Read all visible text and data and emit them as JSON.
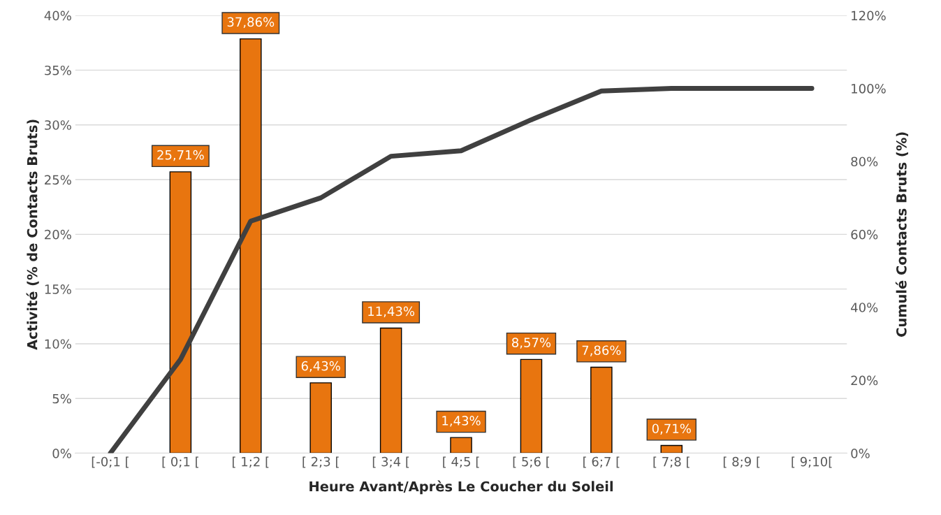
{
  "chart_data": {
    "type": "bar",
    "xlabel": "Heure Avant/Après Le Coucher du Soleil",
    "ylabel": "Activité (% de Contacts Bruts)",
    "y2label": "Cumulé Contacts Bruts (%)",
    "categories": [
      "[-0;1 [",
      "[ 0;1 [",
      "[ 1;2 [",
      "[ 2;3 [",
      "[ 3;4 [",
      "[ 4;5 [",
      "[ 5;6 [",
      "[ 6;7 [",
      "[ 7;8 [",
      "[ 8;9 [",
      "[ 9;10["
    ],
    "series": [
      {
        "color": "#e8750f",
        "values": [
          null,
          25.71,
          37.86,
          6.43,
          11.43,
          1.43,
          8.57,
          7.86,
          0.71,
          null,
          null
        ],
        "value_labels": [
          null,
          "25,71%",
          "37,86%",
          "6,43%",
          "11,43%",
          "1,43%",
          "8,57%",
          "7,86%",
          "0,71%",
          null,
          null
        ]
      },
      {
        "type": "line",
        "axis": "y2",
        "color": "#404040",
        "values": [
          0,
          25.7,
          63.6,
          70,
          81.4,
          82.9,
          91.4,
          99.3,
          100,
          100,
          100
        ]
      }
    ],
    "ylim": [
      0,
      40
    ],
    "yticks": [
      {
        "value": 0,
        "label": "0%"
      },
      {
        "value": 5,
        "label": "5%"
      },
      {
        "value": 10,
        "label": "10%"
      },
      {
        "value": 15,
        "label": "15%"
      },
      {
        "value": 20,
        "label": "20%"
      },
      {
        "value": 25,
        "label": "25%"
      },
      {
        "value": 30,
        "label": "30%"
      },
      {
        "value": 35,
        "label": "35%"
      },
      {
        "value": 40,
        "label": "40%"
      }
    ],
    "y2lim": [
      0,
      120
    ],
    "y2ticks": [
      {
        "value": 0,
        "label": "0%"
      },
      {
        "value": 20,
        "label": "20%"
      },
      {
        "value": 40,
        "label": "40%"
      },
      {
        "value": 60,
        "label": "60%"
      },
      {
        "value": 80,
        "label": "80%"
      },
      {
        "value": 100,
        "label": "100%"
      },
      {
        "value": 120,
        "label": "120%"
      }
    ],
    "grid": "y",
    "legend": false
  }
}
